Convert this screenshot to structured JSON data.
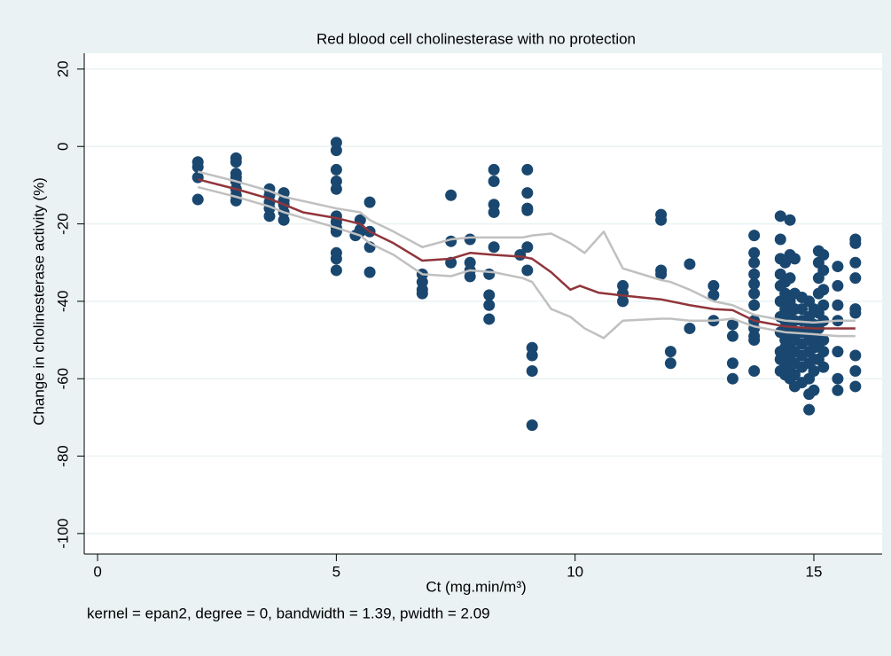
{
  "chart_data": {
    "type": "scatter",
    "title": "Red blood cell cholinesterase with no protection",
    "x_label": "Ct (mg.min/m³)",
    "y_label": "Change in cholinesterase activity (%)",
    "note": "kernel = epan2, degree = 0, bandwidth = 1.39, pwidth = 2.09",
    "xlim": [
      -0.28,
      16.43
    ],
    "ylim": [
      -105.3,
      24.1
    ],
    "xticks": [
      0,
      5,
      10,
      15
    ],
    "yticks": [
      -100,
      -80,
      -60,
      -40,
      -20,
      0,
      20
    ],
    "grid": true,
    "series": [
      {
        "style": "markers",
        "color": "#1a476f",
        "x": [
          2.1,
          2.1,
          2.1,
          2.1,
          2.9,
          2.9,
          2.9,
          2.9,
          2.9,
          2.9,
          2.9,
          2.9,
          3.6,
          3.6,
          3.6,
          3.6,
          3.6,
          3.9,
          3.9,
          3.9,
          3.9,
          3.9,
          5.0,
          5.0,
          5.0,
          5.0,
          5.0,
          5.0,
          5.0,
          5.0,
          5.0,
          5.0,
          5.0,
          5.0,
          5.4,
          5.5,
          5.5,
          5.5,
          5.7,
          5.7,
          5.7,
          5.7,
          6.8,
          6.8,
          6.8,
          6.8,
          7.4,
          7.4,
          7.4,
          7.8,
          7.8,
          7.8,
          7.8,
          8.2,
          8.2,
          8.2,
          8.2,
          8.3,
          8.3,
          8.3,
          8.3,
          8.3,
          8.85,
          9.0,
          9.0,
          9.0,
          9.0,
          9.0,
          9.0,
          9.1,
          9.1,
          9.1,
          9.1,
          11.0,
          11.0,
          11.0,
          11.8,
          11.8,
          11.8,
          11.8,
          12.0,
          12.0,
          12.4,
          12.4,
          12.9,
          12.9,
          12.9,
          13.3,
          13.3,
          13.3,
          13.3,
          13.75,
          13.75,
          13.75,
          13.75,
          13.75,
          13.75,
          13.75,
          13.75,
          13.75,
          13.75,
          13.75,
          13.75,
          14.3,
          14.3,
          14.3,
          14.3,
          14.3,
          14.3,
          14.3,
          14.3,
          14.3,
          14.3,
          14.3,
          14.4,
          14.4,
          14.4,
          14.4,
          14.4,
          14.4,
          14.4,
          14.4,
          14.4,
          14.4,
          14.5,
          14.5,
          14.5,
          14.5,
          14.5,
          14.5,
          14.5,
          14.5,
          14.5,
          14.5,
          14.5,
          14.6,
          14.6,
          14.6,
          14.6,
          14.6,
          14.6,
          14.6,
          14.6,
          14.6,
          14.6,
          14.75,
          14.75,
          14.75,
          14.75,
          14.75,
          14.75,
          14.75,
          14.75,
          14.9,
          14.9,
          14.9,
          14.9,
          14.9,
          14.9,
          14.9,
          14.9,
          14.9,
          15.0,
          15.0,
          15.0,
          15.0,
          15.0,
          15.0,
          15.0,
          15.1,
          15.1,
          15.1,
          15.1,
          15.1,
          15.1,
          15.1,
          15.1,
          15.2,
          15.2,
          15.2,
          15.2,
          15.2,
          15.2,
          15.2,
          15.2,
          15.5,
          15.5,
          15.5,
          15.5,
          15.5,
          15.5,
          15.5,
          15.87,
          15.87,
          15.87,
          15.87,
          15.87,
          15.87,
          15.87,
          15.87,
          15.87
        ],
        "values": [
          -4,
          -5.3,
          -8,
          -13.7,
          -3,
          -4,
          -7,
          -8,
          -9,
          -11,
          -12.6,
          -14,
          -11,
          -12.6,
          -14.4,
          -16,
          -18,
          -12,
          -14,
          -15,
          -17,
          -19,
          1,
          -1,
          -6,
          -9,
          -11,
          -18,
          -19.5,
          -21,
          -22,
          -27.5,
          -29,
          -32,
          -23,
          -19,
          -21.5,
          -22,
          -14.4,
          -22,
          -26,
          -32.5,
          -33,
          -35,
          -37,
          -38,
          -12.6,
          -24.5,
          -30,
          -24,
          -30,
          -32,
          -33.6,
          -33,
          -38.4,
          -41,
          -44.6,
          -6,
          -9,
          -15,
          -17,
          -26,
          -28,
          -6,
          -12,
          -16,
          -16.5,
          -26,
          -32,
          -52,
          -54,
          -58,
          -72,
          -36,
          -38,
          -40,
          -17.6,
          -19,
          -32,
          -33,
          -53,
          -56,
          -30.4,
          -47,
          -36,
          -38.4,
          -45,
          -46,
          -49,
          -56,
          -60,
          -23,
          -27.5,
          -30,
          -33,
          -35.5,
          -38,
          -41,
          -45,
          -47,
          -49,
          -50,
          -58,
          -18,
          -24,
          -29,
          -33,
          -36,
          -40,
          -44,
          -48,
          -53,
          -55,
          -58,
          -30,
          -35,
          -38,
          -42,
          -45,
          -47,
          -50,
          -52,
          -56,
          -59,
          -19,
          -28,
          -34,
          -40,
          -43,
          -46,
          -49,
          -51,
          -54,
          -57,
          -60,
          -29,
          -38,
          -42,
          -45,
          -48,
          -50,
          -53,
          -56,
          -59,
          -62,
          -39,
          -42,
          -45,
          -48,
          -51,
          -54,
          -57,
          -61,
          -40,
          -44,
          -47,
          -50,
          -53,
          -56,
          -60,
          -64,
          -68,
          -42,
          -46,
          -49,
          -52,
          -55,
          -58,
          -63,
          -27,
          -30,
          -34,
          -38,
          -43,
          -47,
          -51,
          -55,
          -28,
          -32,
          -37,
          -41,
          -45,
          -50,
          -53,
          -57,
          -31,
          -36,
          -41,
          -45,
          -53,
          -60,
          -63,
          -24,
          -25,
          -30,
          -34,
          -42,
          -43,
          -54,
          -58,
          -62
        ]
      },
      {
        "style": "line",
        "color": "#c0c0c0",
        "x": [
          2.1,
          2.9,
          3.6,
          3.9,
          5.0,
          5.5,
          5.7,
          6.2,
          6.8,
          7.4,
          7.8,
          8.3,
          8.9,
          9.1,
          9.5,
          9.9,
          10.2,
          10.6,
          11.0,
          11.8,
          12.0,
          12.4,
          12.9,
          13.3,
          13.75,
          14.4,
          15.0,
          15.5,
          15.87
        ],
        "values": [
          -6.5,
          -9,
          -11.5,
          -13,
          -16,
          -17,
          -19,
          -22,
          -26,
          -24,
          -23.5,
          -23.5,
          -23.5,
          -23,
          -22.5,
          -25,
          -27.5,
          -22,
          -31.5,
          -34.5,
          -35,
          -37,
          -40,
          -41,
          -43.5,
          -45,
          -45.5,
          -45,
          -45
        ]
      },
      {
        "style": "line",
        "color": "#c0c0c0",
        "x": [
          2.1,
          2.9,
          3.6,
          3.9,
          5.0,
          5.5,
          5.7,
          6.2,
          6.8,
          7.4,
          7.8,
          8.3,
          8.9,
          9.1,
          9.5,
          9.9,
          10.2,
          10.6,
          11.0,
          11.8,
          12.0,
          12.4,
          12.9,
          13.3,
          13.75,
          14.4,
          15.0,
          15.5,
          15.87
        ],
        "values": [
          -10.5,
          -13,
          -15.5,
          -17,
          -21,
          -23,
          -25,
          -28,
          -33,
          -33.5,
          -32,
          -32.5,
          -34,
          -35,
          -42,
          -44,
          -47,
          -49.5,
          -45,
          -44.5,
          -44.5,
          -45,
          -45,
          -44.5,
          -46.5,
          -48,
          -48.5,
          -49,
          -49
        ]
      },
      {
        "style": "line",
        "color": "#90353b",
        "x": [
          2.1,
          2.9,
          3.6,
          3.9,
          4.3,
          5.0,
          5.5,
          5.7,
          6.2,
          6.8,
          7.4,
          7.8,
          8.3,
          8.9,
          9.1,
          9.5,
          9.9,
          10.1,
          10.5,
          11.0,
          11.8,
          12.0,
          12.4,
          12.9,
          13.3,
          13.75,
          14.4,
          15.0,
          15.5,
          15.87
        ],
        "values": [
          -8.5,
          -11,
          -13.5,
          -15,
          -17,
          -18.5,
          -20,
          -22,
          -25,
          -29.5,
          -29,
          -27.5,
          -28,
          -28.5,
          -29,
          -32.5,
          -37,
          -36,
          -37.8,
          -38.5,
          -39.5,
          -40,
          -41,
          -42,
          -42.3,
          -45,
          -46.5,
          -47,
          -47,
          -47
        ]
      }
    ]
  }
}
